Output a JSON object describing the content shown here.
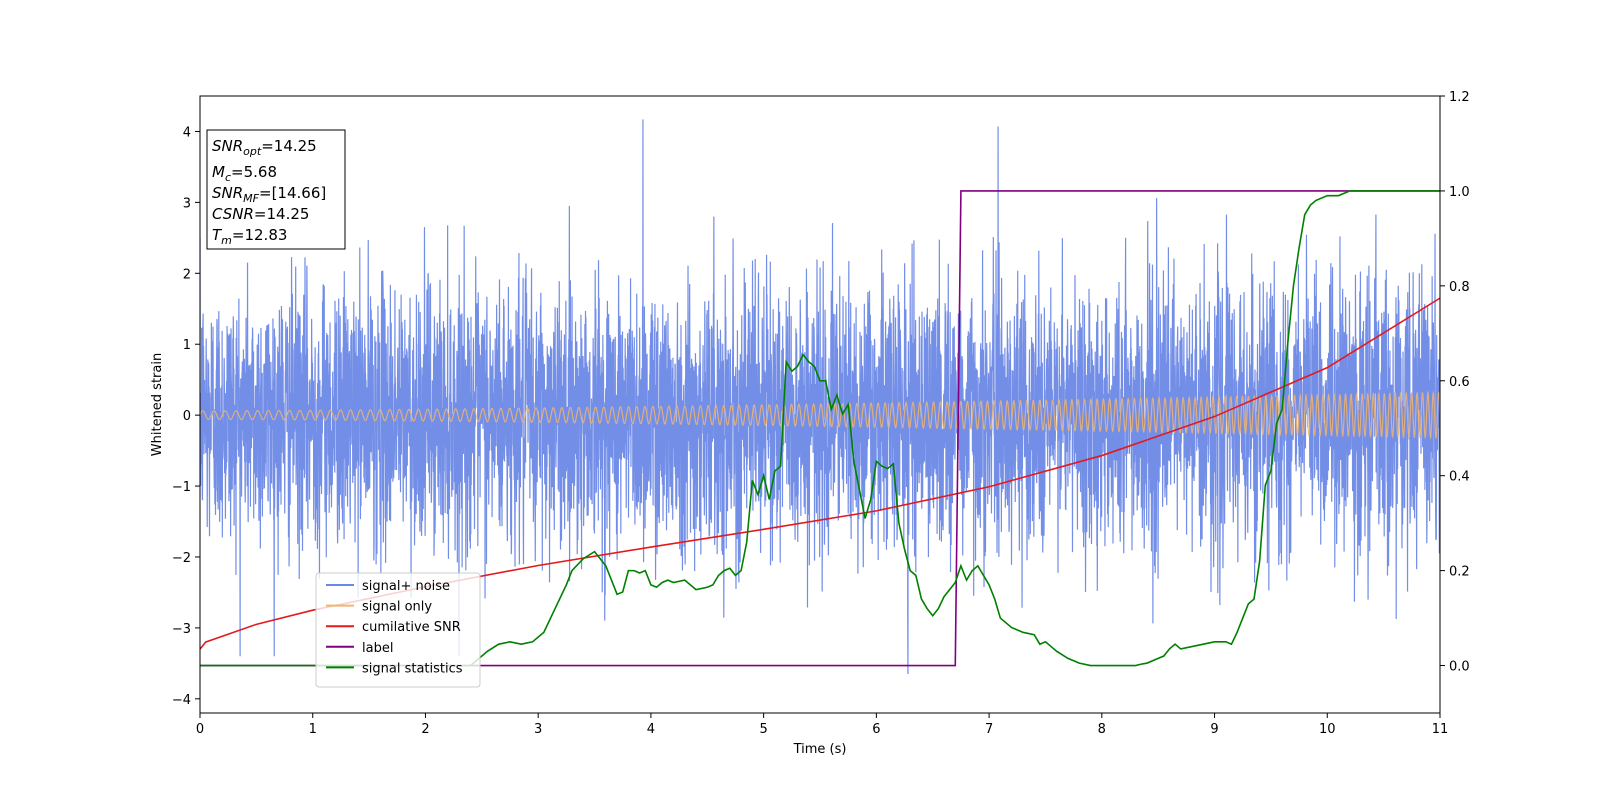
{
  "chart_data": {
    "type": "line",
    "xlabel": "Time (s)",
    "ylabel": "Whitened strain",
    "xlim": [
      0,
      11
    ],
    "ylim": [
      -4.2,
      4.5
    ],
    "y2lim": [
      -0.1,
      1.2
    ],
    "grid": false,
    "legend_placement": "lower-left",
    "x_ticks": [
      "0",
      "1",
      "2",
      "3",
      "4",
      "5",
      "6",
      "7",
      "8",
      "9",
      "10",
      "11"
    ],
    "y_ticks": [
      "−4",
      "−3",
      "−2",
      "−1",
      "0",
      "1",
      "2",
      "3",
      "4"
    ],
    "y2_ticks": [
      "0.0",
      "0.2",
      "0.4",
      "0.6",
      "0.8",
      "1.0",
      "1.2"
    ],
    "info_box": [
      {
        "base": "SNR",
        "sub": "opt",
        "value": "=14.25"
      },
      {
        "base": "M",
        "sub": "c",
        "value": "=5.68"
      },
      {
        "base": "SNR",
        "sub": "MF",
        "value": "=[14.66]"
      },
      {
        "base": "CSNR",
        "sub": "",
        "value": "=14.25"
      },
      {
        "base": "T",
        "sub": "m",
        "value": "=12.83"
      }
    ],
    "series": [
      {
        "name": "signal+ noise",
        "axis": "left",
        "color": "#6b88e6",
        "description_values": "white noise, approx std 0.9, peaks near ±3.5 to 4.2",
        "noise_std": 0.9,
        "extrema": [
          {
            "x": 3.93,
            "y": 4.17
          },
          {
            "x": 6.28,
            "y": -3.65
          },
          {
            "x": 7.08,
            "y": 4.07
          }
        ]
      },
      {
        "name": "signal only",
        "axis": "left",
        "color": "#f0b46e",
        "amplitude_start": 0.06,
        "amplitude_end": 0.32
      },
      {
        "name": "cumilative SNR",
        "axis": "left",
        "color": "#e31a1c",
        "x": [
          0,
          0.05,
          0.5,
          1,
          2,
          3,
          4,
          5,
          6,
          7,
          8,
          9,
          10,
          11
        ],
        "values": [
          -3.3,
          -3.2,
          -2.95,
          -2.75,
          -2.42,
          -2.12,
          -1.86,
          -1.61,
          -1.35,
          -1.01,
          -0.57,
          -0.02,
          0.67,
          1.65
        ]
      },
      {
        "name": "label",
        "axis": "right",
        "color": "#800080",
        "x": [
          0,
          6.7,
          6.75,
          11
        ],
        "values": [
          0,
          0,
          1,
          1
        ]
      },
      {
        "name": "signal statistics",
        "axis": "right",
        "color": "#008000",
        "x": [
          0,
          2.4,
          2.55,
          2.65,
          2.75,
          2.85,
          2.95,
          3.05,
          3.15,
          3.25,
          3.3,
          3.4,
          3.5,
          3.6,
          3.7,
          3.75,
          3.8,
          3.85,
          3.9,
          3.95,
          4.0,
          4.05,
          4.1,
          4.15,
          4.2,
          4.3,
          4.4,
          4.5,
          4.55,
          4.6,
          4.65,
          4.7,
          4.75,
          4.8,
          4.85,
          4.9,
          4.95,
          5.0,
          5.05,
          5.1,
          5.15,
          5.2,
          5.25,
          5.3,
          5.35,
          5.4,
          5.45,
          5.5,
          5.55,
          5.6,
          5.65,
          5.7,
          5.75,
          5.8,
          5.85,
          5.9,
          5.95,
          6.0,
          6.05,
          6.1,
          6.15,
          6.2,
          6.25,
          6.3,
          6.35,
          6.4,
          6.45,
          6.5,
          6.55,
          6.6,
          6.65,
          6.7,
          6.75,
          6.8,
          6.85,
          6.9,
          6.95,
          7.0,
          7.05,
          7.1,
          7.2,
          7.3,
          7.4,
          7.45,
          7.5,
          7.55,
          7.6,
          7.7,
          7.8,
          7.9,
          8.0,
          8.1,
          8.2,
          8.3,
          8.35,
          8.4,
          8.5,
          8.55,
          8.6,
          8.65,
          8.7,
          8.8,
          8.9,
          9.0,
          9.1,
          9.15,
          9.2,
          9.25,
          9.3,
          9.35,
          9.4,
          9.45,
          9.5,
          9.55,
          9.6,
          9.65,
          9.7,
          9.75,
          9.8,
          9.85,
          9.9,
          10.0,
          10.1,
          10.2,
          10.3,
          10.5,
          10.7,
          10.9,
          11.0
        ],
        "values": [
          0.0,
          0.0,
          0.03,
          0.045,
          0.05,
          0.045,
          0.05,
          0.07,
          0.12,
          0.17,
          0.2,
          0.225,
          0.24,
          0.21,
          0.15,
          0.155,
          0.2,
          0.2,
          0.195,
          0.2,
          0.17,
          0.165,
          0.175,
          0.18,
          0.175,
          0.18,
          0.16,
          0.165,
          0.17,
          0.19,
          0.2,
          0.205,
          0.19,
          0.2,
          0.26,
          0.39,
          0.36,
          0.4,
          0.35,
          0.41,
          0.42,
          0.64,
          0.62,
          0.63,
          0.655,
          0.64,
          0.63,
          0.6,
          0.6,
          0.54,
          0.57,
          0.53,
          0.55,
          0.43,
          0.37,
          0.31,
          0.35,
          0.43,
          0.42,
          0.415,
          0.425,
          0.3,
          0.245,
          0.2,
          0.19,
          0.14,
          0.12,
          0.105,
          0.12,
          0.145,
          0.16,
          0.175,
          0.21,
          0.18,
          0.2,
          0.21,
          0.19,
          0.17,
          0.14,
          0.1,
          0.08,
          0.07,
          0.065,
          0.045,
          0.05,
          0.04,
          0.03,
          0.015,
          0.005,
          0.0,
          0.0,
          0.0,
          0.0,
          0.0,
          0.003,
          0.005,
          0.015,
          0.02,
          0.035,
          0.045,
          0.035,
          0.04,
          0.045,
          0.05,
          0.05,
          0.045,
          0.07,
          0.1,
          0.13,
          0.14,
          0.22,
          0.38,
          0.41,
          0.51,
          0.54,
          0.68,
          0.8,
          0.88,
          0.95,
          0.97,
          0.98,
          0.99,
          0.99,
          1.0,
          1.0,
          1.0,
          1.0,
          1.0,
          1.0
        ]
      }
    ]
  }
}
